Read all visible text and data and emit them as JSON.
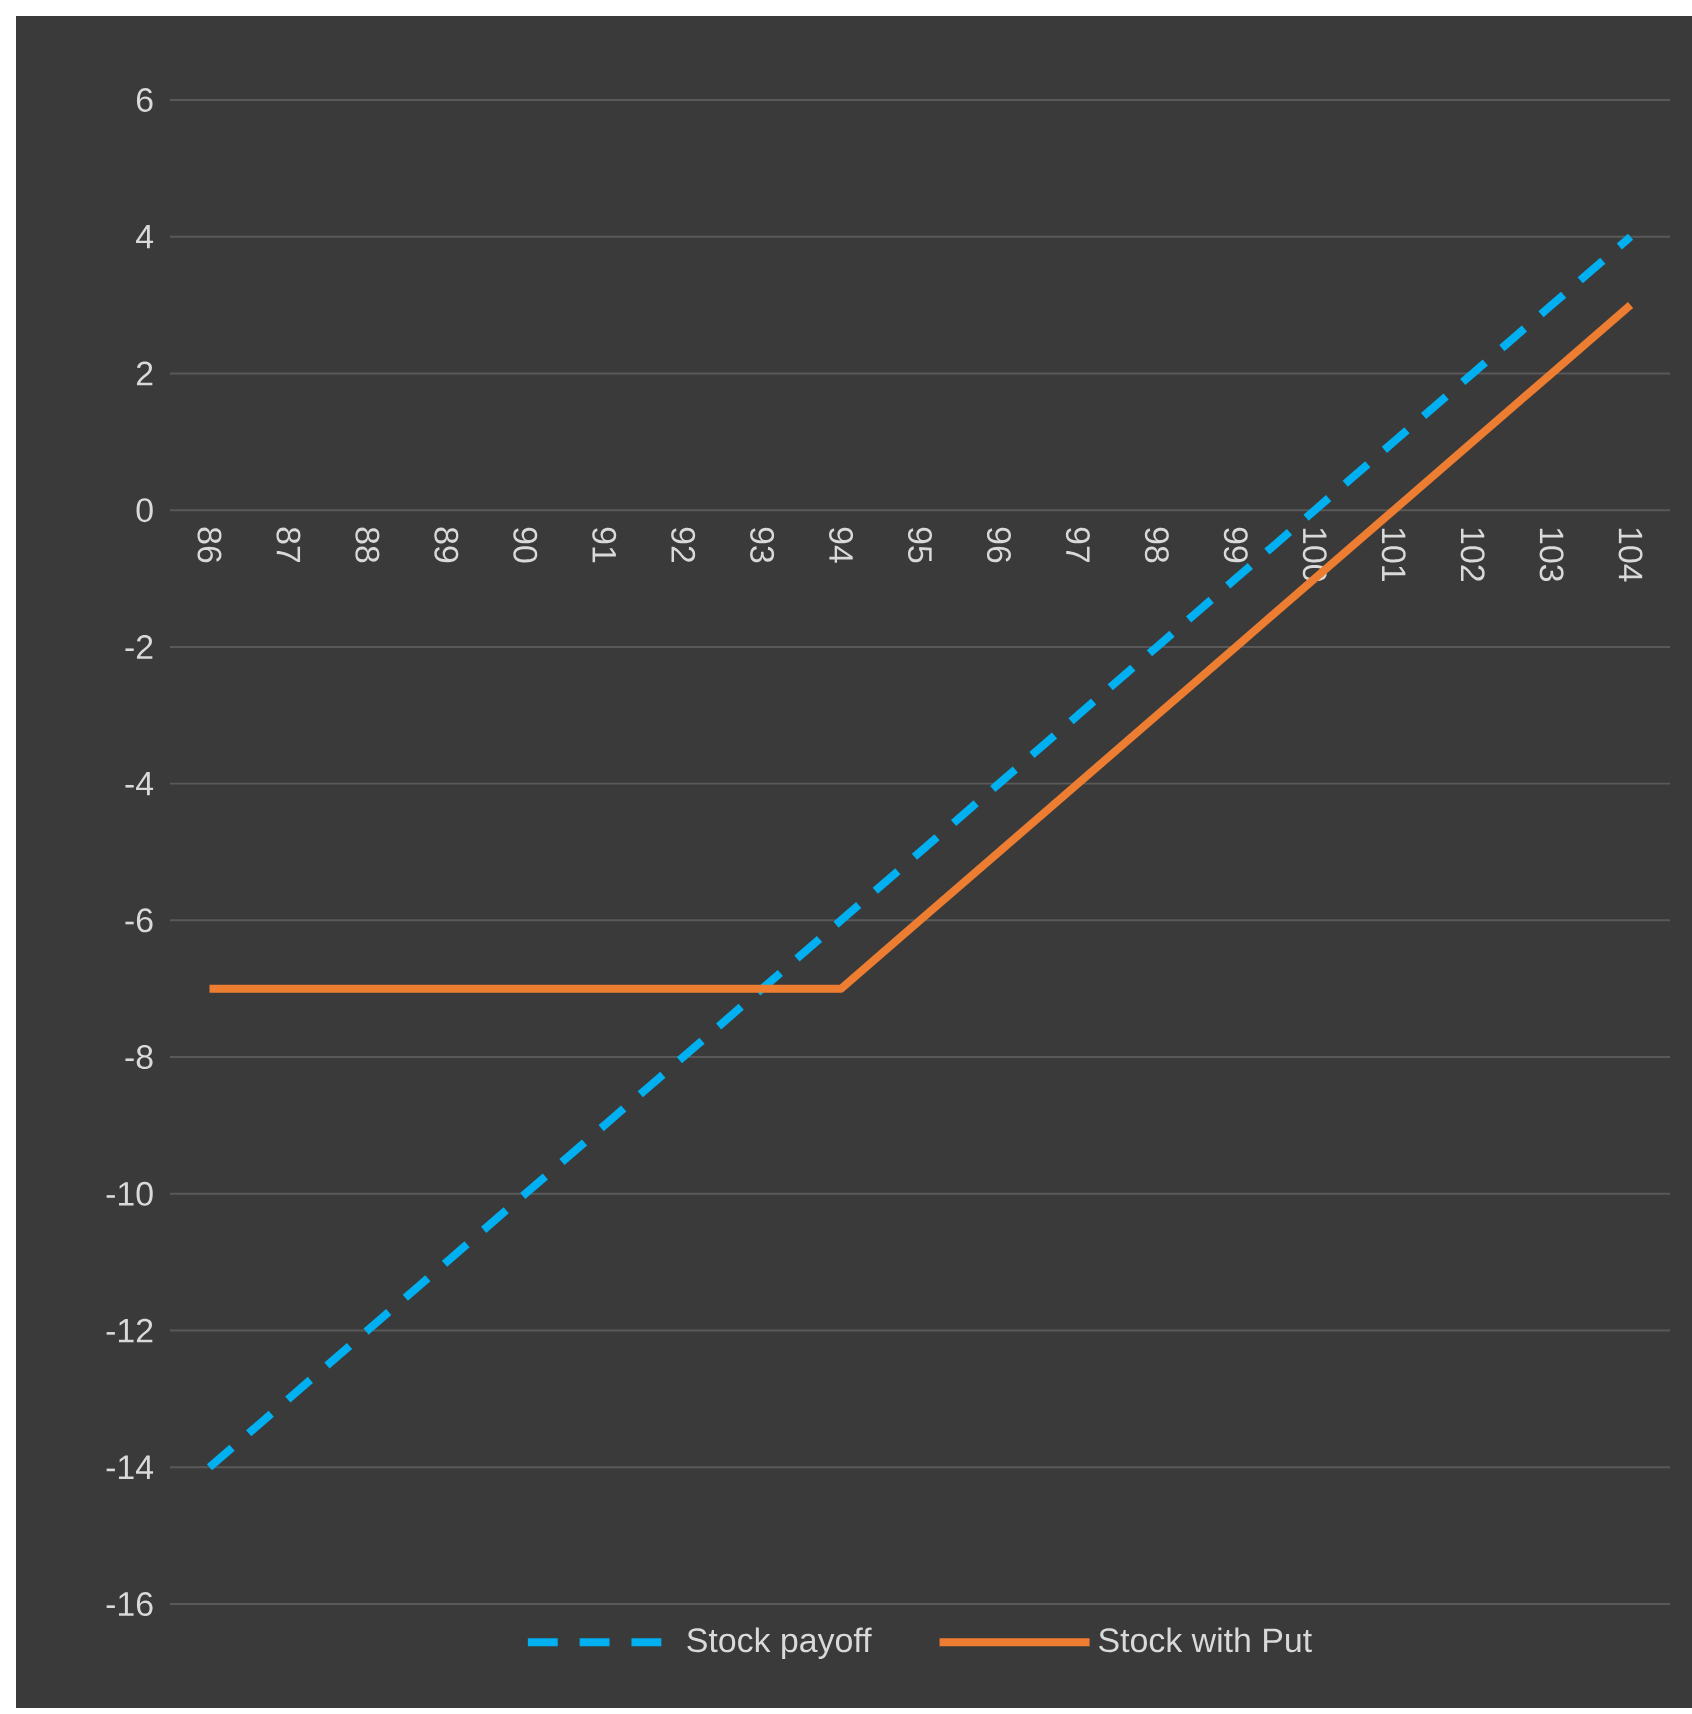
{
  "chart_data": {
    "type": "line",
    "categories": [
      "86",
      "87",
      "88",
      "89",
      "90",
      "91",
      "92",
      "93",
      "94",
      "95",
      "96",
      "97",
      "98",
      "99",
      "100",
      "101",
      "102",
      "103",
      "104"
    ],
    "series": [
      {
        "name": "Stock payoff",
        "color": "#00b0f0",
        "line_style": "dashed",
        "values": [
          -14,
          -13,
          -12,
          -11,
          -10,
          -9,
          -8,
          -7,
          -6,
          -5,
          -4,
          -3,
          -2,
          -1,
          0,
          1,
          2,
          3,
          4
        ]
      },
      {
        "name": "Stock with Put",
        "color": "#ed7d31",
        "line_style": "solid",
        "values": [
          -7,
          -7,
          -7,
          -7,
          -7,
          -7,
          -7,
          -7,
          -7,
          -6,
          -5,
          -4,
          -3,
          -2,
          -1,
          0,
          1,
          2,
          3
        ]
      }
    ],
    "ylim": [
      -16,
      6
    ],
    "yticks": [
      -16,
      -14,
      -12,
      -10,
      -8,
      -6,
      -4,
      -2,
      0,
      2,
      4,
      6
    ],
    "grid": "y",
    "legend": "bottom"
  }
}
